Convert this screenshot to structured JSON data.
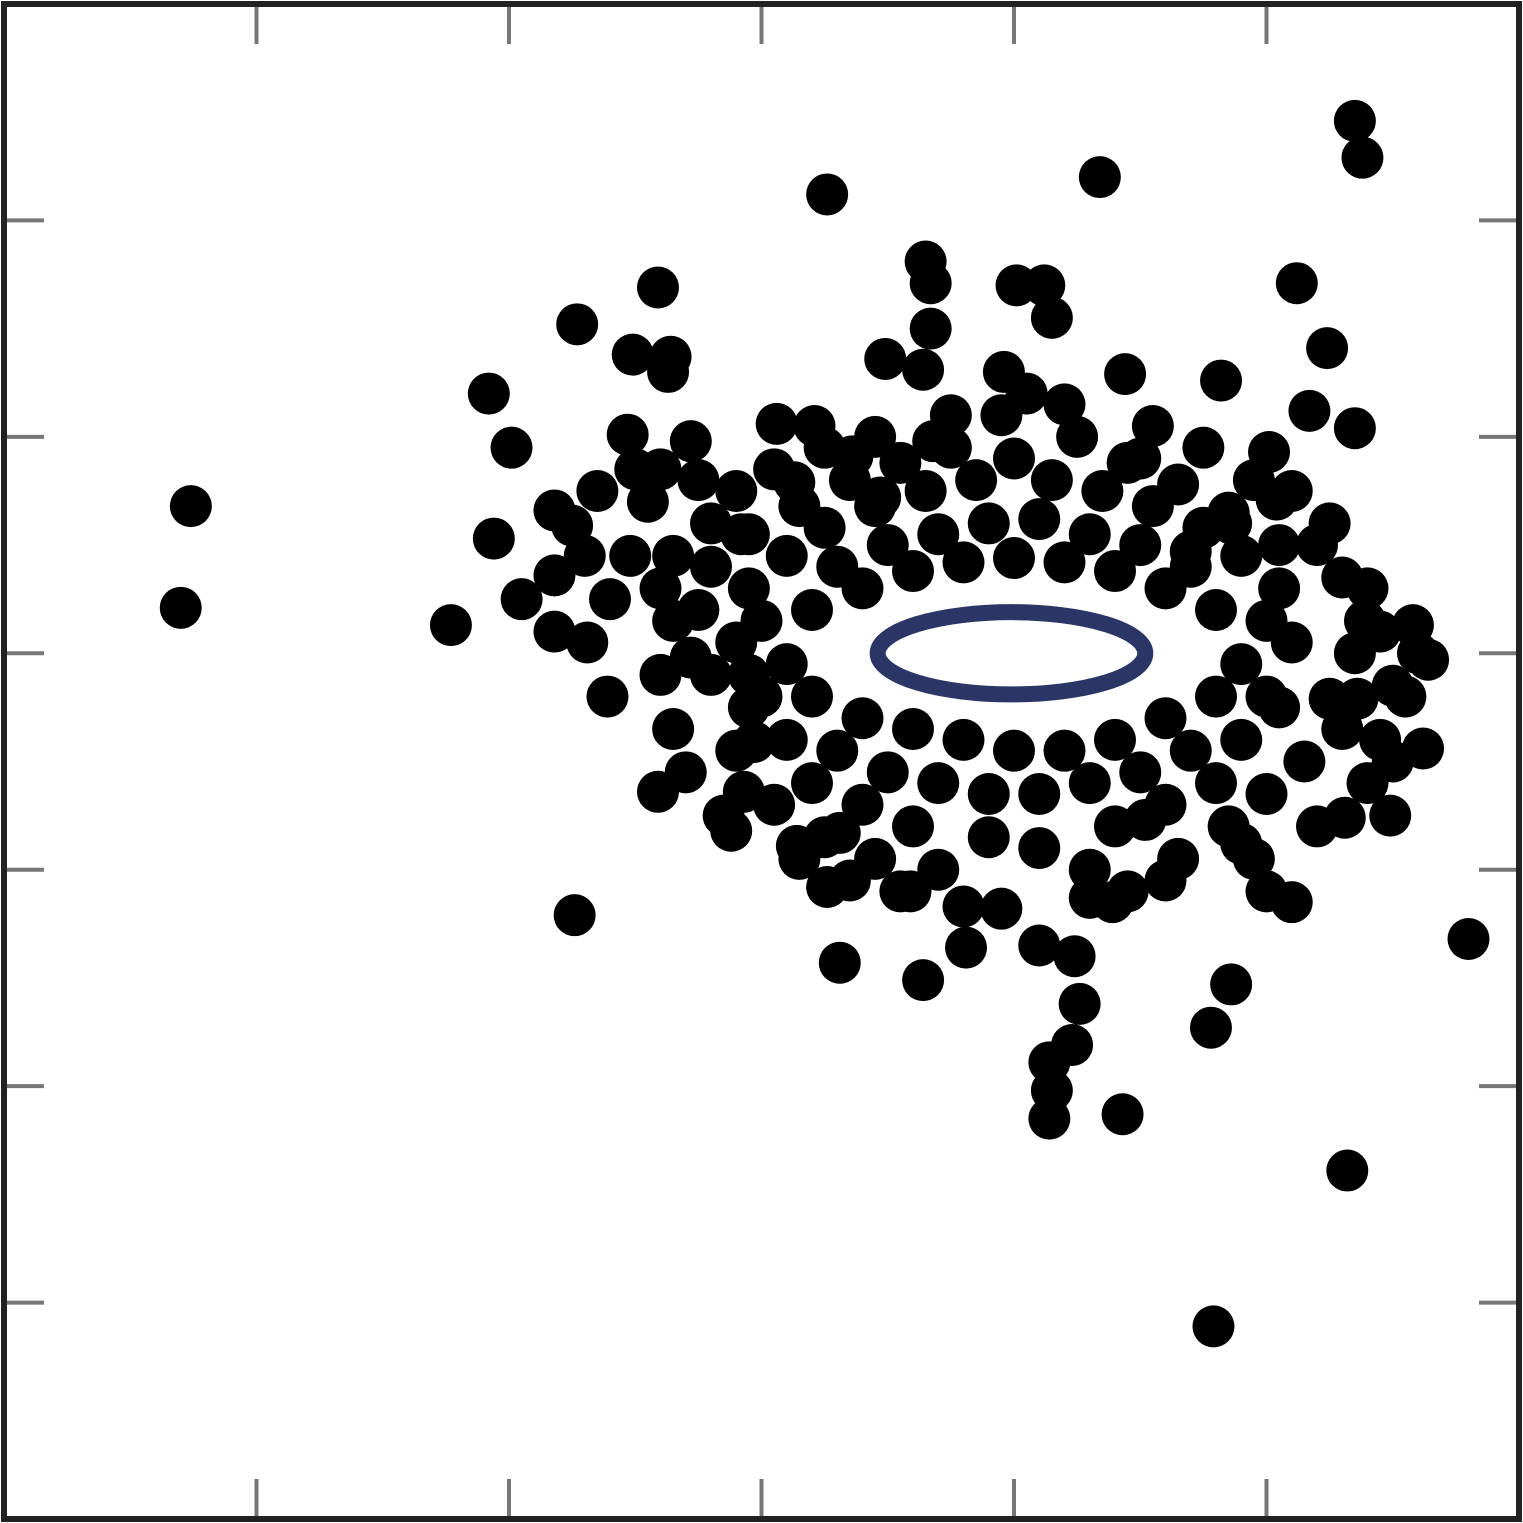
{
  "chart_data": {
    "type": "scatter",
    "title": "",
    "xlabel": "",
    "ylabel": "",
    "xlim": [
      0,
      6
    ],
    "ylim": [
      -4,
      3
    ],
    "x_ticks": [
      1,
      2,
      3,
      4,
      5
    ],
    "y_ticks": [
      -3,
      -2,
      -1,
      0,
      1,
      2
    ],
    "tick_labels_shown": false,
    "grid": false,
    "legend": "none",
    "colors": {
      "points": "#000000",
      "ellipse": "#2b3566",
      "ellipse_fill": "#ffffff",
      "frame": "#222222",
      "ticks": "#777777"
    },
    "ellipse": {
      "center": [
        3.99,
        0.0
      ],
      "x_radius": 0.53,
      "y_radius": 0.19
    },
    "series": [
      {
        "marker": "filled-circle",
        "points": [
          [
            5.35,
            2.46
          ],
          [
            5.38,
            2.29
          ],
          [
            4.34,
            2.2
          ],
          [
            3.26,
            2.12
          ],
          [
            3.65,
            1.81
          ],
          [
            3.67,
            1.71
          ],
          [
            4.01,
            1.7
          ],
          [
            4.12,
            1.7
          ],
          [
            4.15,
            1.55
          ],
          [
            5.12,
            1.71
          ],
          [
            2.59,
            1.69
          ],
          [
            2.27,
            1.52
          ],
          [
            3.67,
            1.5
          ],
          [
            3.49,
            1.36
          ],
          [
            3.64,
            1.31
          ],
          [
            2.63,
            1.3
          ],
          [
            2.49,
            1.38
          ],
          [
            2.64,
            1.37
          ],
          [
            5.24,
            1.41
          ],
          [
            3.96,
            1.3
          ],
          [
            4.44,
            1.29
          ],
          [
            4.82,
            1.26
          ],
          [
            1.92,
            1.2
          ],
          [
            5.17,
            1.12
          ],
          [
            5.35,
            1.04
          ],
          [
            3.06,
            1.06
          ],
          [
            3.21,
            1.05
          ],
          [
            3.68,
            0.98
          ],
          [
            2.47,
            1.01
          ],
          [
            2.72,
            0.98
          ],
          [
            2.01,
            0.95
          ],
          [
            3.36,
            0.91
          ],
          [
            4.0,
            0.9
          ],
          [
            2.5,
            0.85
          ],
          [
            2.6,
            0.85
          ],
          [
            4.5,
            0.9
          ],
          [
            5.01,
            0.93
          ],
          [
            3.13,
            0.79
          ],
          [
            3.47,
            0.72
          ],
          [
            2.75,
            0.8
          ],
          [
            0.74,
            0.68
          ],
          [
            5.04,
            0.71
          ],
          [
            2.18,
            0.66
          ],
          [
            4.86,
            0.6
          ],
          [
            1.94,
            0.53
          ],
          [
            2.25,
            0.59
          ],
          [
            5.05,
            0.5
          ],
          [
            2.18,
            0.36
          ],
          [
            2.48,
            0.45
          ],
          [
            2.92,
            0.55
          ],
          [
            4.7,
            0.47
          ],
          [
            0.7,
            0.21
          ],
          [
            1.77,
            0.13
          ],
          [
            2.18,
            0.1
          ],
          [
            2.31,
            0.05
          ],
          [
            5.39,
            0.15
          ],
          [
            5.58,
            0.13
          ],
          [
            5.64,
            -0.03
          ],
          [
            2.72,
            -0.02
          ],
          [
            2.95,
            -0.1
          ],
          [
            2.39,
            -0.2
          ],
          [
            5.25,
            -0.21
          ],
          [
            5.36,
            -0.21
          ],
          [
            2.97,
            -0.41
          ],
          [
            5.62,
            -0.44
          ],
          [
            2.59,
            -0.64
          ],
          [
            2.93,
            -0.64
          ],
          [
            2.88,
            -0.82
          ],
          [
            4.52,
            -0.77
          ],
          [
            5.31,
            -0.76
          ],
          [
            5.49,
            -0.75
          ],
          [
            3.14,
            -0.89
          ],
          [
            3.31,
            -0.83
          ],
          [
            2.26,
            -1.21
          ],
          [
            3.26,
            -1.08
          ],
          [
            3.59,
            -1.1
          ],
          [
            3.8,
            -1.17
          ],
          [
            3.95,
            -1.18
          ],
          [
            4.3,
            -1.13
          ],
          [
            4.39,
            -1.15
          ],
          [
            5.8,
            -1.32
          ],
          [
            3.31,
            -1.43
          ],
          [
            3.81,
            -1.36
          ],
          [
            4.1,
            -1.35
          ],
          [
            4.24,
            -1.4
          ],
          [
            3.64,
            -1.51
          ],
          [
            4.86,
            -1.53
          ],
          [
            4.26,
            -1.62
          ],
          [
            4.78,
            -1.73
          ],
          [
            4.14,
            -1.89
          ],
          [
            4.23,
            -1.81
          ],
          [
            4.15,
            -2.02
          ],
          [
            4.43,
            -2.13
          ],
          [
            4.14,
            -2.15
          ],
          [
            5.32,
            -2.39
          ],
          [
            4.79,
            -3.11
          ],
          [
            4.0,
            -0.45
          ],
          [
            3.8,
            -0.4
          ],
          [
            4.2,
            -0.45
          ],
          [
            3.6,
            -0.35
          ],
          [
            4.4,
            -0.4
          ],
          [
            3.4,
            -0.3
          ],
          [
            4.6,
            -0.3
          ],
          [
            3.2,
            -0.2
          ],
          [
            4.8,
            -0.2
          ],
          [
            3.1,
            -0.05
          ],
          [
            4.9,
            -0.05
          ],
          [
            3.2,
            0.2
          ],
          [
            4.8,
            0.2
          ],
          [
            3.4,
            0.3
          ],
          [
            4.6,
            0.3
          ],
          [
            3.6,
            0.38
          ],
          [
            4.4,
            0.38
          ],
          [
            3.8,
            0.42
          ],
          [
            4.0,
            0.44
          ],
          [
            4.2,
            0.42
          ],
          [
            3.7,
            0.55
          ],
          [
            4.3,
            0.55
          ],
          [
            3.9,
            0.6
          ],
          [
            4.1,
            0.62
          ],
          [
            3.5,
            0.5
          ],
          [
            4.5,
            0.5
          ],
          [
            3.3,
            0.4
          ],
          [
            4.7,
            0.4
          ],
          [
            3.0,
            0.15
          ],
          [
            5.0,
            0.15
          ],
          [
            3.0,
            -0.2
          ],
          [
            5.0,
            -0.2
          ],
          [
            3.3,
            -0.45
          ],
          [
            4.7,
            -0.45
          ],
          [
            3.5,
            -0.55
          ],
          [
            4.5,
            -0.55
          ],
          [
            3.7,
            -0.6
          ],
          [
            4.3,
            -0.6
          ],
          [
            3.9,
            -0.65
          ],
          [
            4.1,
            -0.65
          ],
          [
            3.4,
            -0.7
          ],
          [
            4.6,
            -0.7
          ],
          [
            3.6,
            -0.8
          ],
          [
            4.4,
            -0.8
          ],
          [
            3.9,
            -0.85
          ],
          [
            4.1,
            -0.9
          ],
          [
            3.2,
            -0.6
          ],
          [
            4.8,
            -0.6
          ],
          [
            3.1,
            -0.4
          ],
          [
            4.9,
            -0.4
          ],
          [
            2.95,
            -0.25
          ],
          [
            5.05,
            -0.25
          ],
          [
            2.9,
            0.05
          ],
          [
            5.1,
            0.05
          ],
          [
            2.95,
            0.3
          ],
          [
            5.05,
            0.3
          ],
          [
            3.1,
            0.45
          ],
          [
            4.9,
            0.45
          ],
          [
            3.25,
            0.58
          ],
          [
            4.75,
            0.58
          ],
          [
            3.45,
            0.68
          ],
          [
            4.55,
            0.68
          ],
          [
            3.65,
            0.75
          ],
          [
            4.35,
            0.75
          ],
          [
            3.85,
            0.8
          ],
          [
            4.15,
            0.8
          ],
          [
            3.75,
            0.95
          ],
          [
            4.25,
            1.0
          ],
          [
            3.55,
            0.88
          ],
          [
            4.45,
            0.88
          ],
          [
            3.35,
            0.8
          ],
          [
            4.65,
            0.78
          ],
          [
            3.15,
            0.68
          ],
          [
            4.85,
            0.65
          ],
          [
            2.95,
            0.55
          ],
          [
            5.2,
            0.5
          ],
          [
            2.8,
            0.4
          ],
          [
            5.3,
            0.35
          ],
          [
            2.75,
            0.2
          ],
          [
            5.35,
            0.0
          ],
          [
            2.8,
            -0.1
          ],
          [
            5.3,
            -0.35
          ],
          [
            2.9,
            -0.45
          ],
          [
            5.15,
            -0.5
          ],
          [
            3.05,
            -0.7
          ],
          [
            5.0,
            -0.65
          ],
          [
            3.25,
            -0.85
          ],
          [
            4.85,
            -0.8
          ],
          [
            3.45,
            -0.95
          ],
          [
            4.65,
            -0.95
          ],
          [
            3.7,
            -1.0
          ],
          [
            4.3,
            -1.0
          ],
          [
            3.55,
            -1.1
          ],
          [
            4.45,
            -1.1
          ],
          [
            3.35,
            -1.05
          ],
          [
            4.6,
            -1.05
          ],
          [
            3.15,
            -0.95
          ],
          [
            4.95,
            -0.95
          ],
          [
            2.85,
            -0.75
          ],
          [
            5.2,
            -0.8
          ],
          [
            2.7,
            -0.55
          ],
          [
            5.4,
            -0.6
          ],
          [
            2.65,
            -0.35
          ],
          [
            5.45,
            -0.4
          ],
          [
            2.6,
            -0.1
          ],
          [
            5.5,
            -0.15
          ],
          [
            2.65,
            0.15
          ],
          [
            5.45,
            0.1
          ],
          [
            2.65,
            0.45
          ],
          [
            5.4,
            0.3
          ],
          [
            2.8,
            0.6
          ],
          [
            5.25,
            0.6
          ],
          [
            2.9,
            0.75
          ],
          [
            5.1,
            0.75
          ],
          [
            3.05,
            0.85
          ],
          [
            4.95,
            0.8
          ],
          [
            3.25,
            0.95
          ],
          [
            4.75,
            0.95
          ],
          [
            3.45,
            1.0
          ],
          [
            4.55,
            1.05
          ],
          [
            3.95,
            1.1
          ],
          [
            4.05,
            1.2
          ],
          [
            4.2,
            1.15
          ],
          [
            3.75,
            1.1
          ],
          [
            2.35,
            0.75
          ],
          [
            2.55,
            0.7
          ],
          [
            2.3,
            0.45
          ],
          [
            2.4,
            0.25
          ],
          [
            2.05,
            0.25
          ],
          [
            2.6,
            0.3
          ],
          [
            5.55,
            -0.2
          ],
          [
            5.6,
            0.0
          ],
          [
            5.5,
            -0.5
          ],
          [
            5.1,
            -1.15
          ],
          [
            5.0,
            -1.1
          ],
          [
            4.9,
            -0.88
          ]
        ]
      }
    ]
  }
}
